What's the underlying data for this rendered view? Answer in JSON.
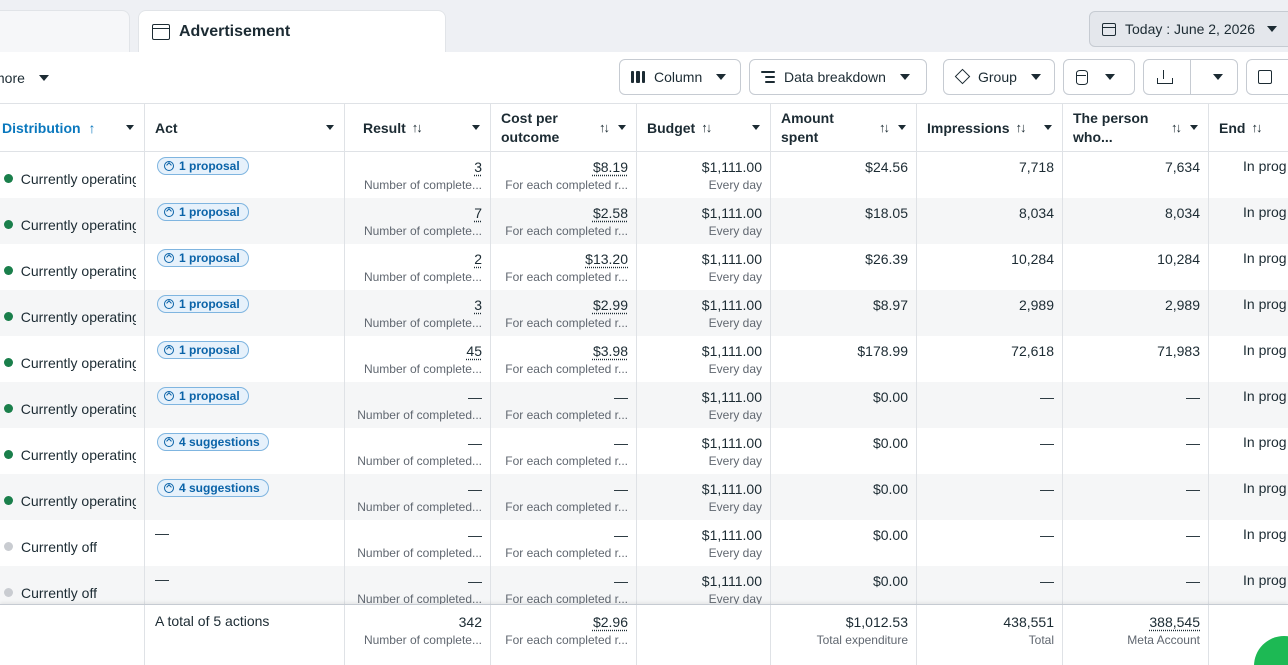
{
  "tabs": {
    "active": "Advertisement"
  },
  "date_range": {
    "label": "Today : June 2, 2026"
  },
  "toolbar": {
    "more_label": "more",
    "column_label": "Column",
    "breakdown_label": "Data breakdown",
    "group_label": "Group"
  },
  "columns": {
    "distribution": "Distribution",
    "act": "Act",
    "result": "Result",
    "cost_line1": "Cost per",
    "cost_line2": "outcome",
    "budget": "Budget",
    "spent_line1": "Amount",
    "spent_line2": "spent",
    "impressions": "Impressions",
    "person_line1": "The person",
    "person_line2": "who...",
    "end": "End"
  },
  "rows": [
    {
      "status": "Currently operating",
      "status_color": "#1a7f4b",
      "act": "1 proposal",
      "result": "3",
      "result_sub": "Number of complete...",
      "cost": "$8.19",
      "cost_sub": "For each completed r...",
      "budget": "$1,111.00",
      "budget_sub": "Every day",
      "spent": "$24.56",
      "impressions": "7,718",
      "reach": "7,634",
      "end": "In prog"
    },
    {
      "status": "Currently operating",
      "status_color": "#1a7f4b",
      "act": "1 proposal",
      "result": "7",
      "result_sub": "Number of complete...",
      "cost": "$2.58",
      "cost_sub": "For each completed r...",
      "budget": "$1,111.00",
      "budget_sub": "Every day",
      "spent": "$18.05",
      "impressions": "8,034",
      "reach": "8,034",
      "end": "In prog"
    },
    {
      "status": "Currently operating",
      "status_color": "#1a7f4b",
      "act": "1 proposal",
      "result": "2",
      "result_sub": "Number of complete...",
      "cost": "$13.20",
      "cost_sub": "For each completed r...",
      "budget": "$1,111.00",
      "budget_sub": "Every day",
      "spent": "$26.39",
      "impressions": "10,284",
      "reach": "10,284",
      "end": "In prog"
    },
    {
      "status": "Currently operating",
      "status_color": "#1a7f4b",
      "act": "1 proposal",
      "result": "3",
      "result_sub": "Number of complete...",
      "cost": "$2.99",
      "cost_sub": "For each completed r...",
      "budget": "$1,111.00",
      "budget_sub": "Every day",
      "spent": "$8.97",
      "impressions": "2,989",
      "reach": "2,989",
      "end": "In prog"
    },
    {
      "status": "Currently operating",
      "status_color": "#1a7f4b",
      "act": "1 proposal",
      "result": "45",
      "result_sub": "Number of complete...",
      "cost": "$3.98",
      "cost_sub": "For each completed r...",
      "budget": "$1,111.00",
      "budget_sub": "Every day",
      "spent": "$178.99",
      "impressions": "72,618",
      "reach": "71,983",
      "end": "In prog"
    },
    {
      "status": "Currently operating",
      "status_color": "#1a7f4b",
      "act": "1 proposal",
      "result": "—",
      "result_sub": "Number of completed...",
      "cost": "—",
      "cost_sub": "For each completed r...",
      "budget": "$1,111.00",
      "budget_sub": "Every day",
      "spent": "$0.00",
      "impressions": "—",
      "reach": "—",
      "end": "In prog"
    },
    {
      "status": "Currently operating",
      "status_color": "#1a7f4b",
      "act": "4 suggestions",
      "result": "—",
      "result_sub": "Number of completed...",
      "cost": "—",
      "cost_sub": "For each completed r...",
      "budget": "$1,111.00",
      "budget_sub": "Every day",
      "spent": "$0.00",
      "impressions": "—",
      "reach": "—",
      "end": "In prog"
    },
    {
      "status": "Currently operating",
      "status_color": "#1a7f4b",
      "act": "4 suggestions",
      "result": "—",
      "result_sub": "Number of completed...",
      "cost": "—",
      "cost_sub": "For each completed r...",
      "budget": "$1,111.00",
      "budget_sub": "Every day",
      "spent": "$0.00",
      "impressions": "—",
      "reach": "—",
      "end": "In prog"
    },
    {
      "status": "Currently off",
      "status_color": "#c9ccd1",
      "act": "—",
      "result": "—",
      "result_sub": "Number of completed...",
      "cost": "—",
      "cost_sub": "For each completed r...",
      "budget": "$1,111.00",
      "budget_sub": "Every day",
      "spent": "$0.00",
      "impressions": "—",
      "reach": "—",
      "end": "In prog"
    },
    {
      "status": "Currently off",
      "status_color": "#c9ccd1",
      "act": "—",
      "result": "—",
      "result_sub": "Number of completed...",
      "cost": "—",
      "cost_sub": "For each completed r...",
      "budget": "$1,111.00",
      "budget_sub": "Every day",
      "spent": "$0.00",
      "impressions": "—",
      "reach": "—",
      "end": "In prog"
    }
  ],
  "totals": {
    "label": "A total of 5 actions",
    "result": "342",
    "result_sub": "Number of complete...",
    "cost": "$2.96",
    "cost_sub": "For each completed r...",
    "spent": "$1,012.53",
    "spent_sub": "Total expenditure",
    "impressions": "438,551",
    "impressions_sub": "Total",
    "reach": "388,545",
    "reach_sub": "Meta Account"
  }
}
